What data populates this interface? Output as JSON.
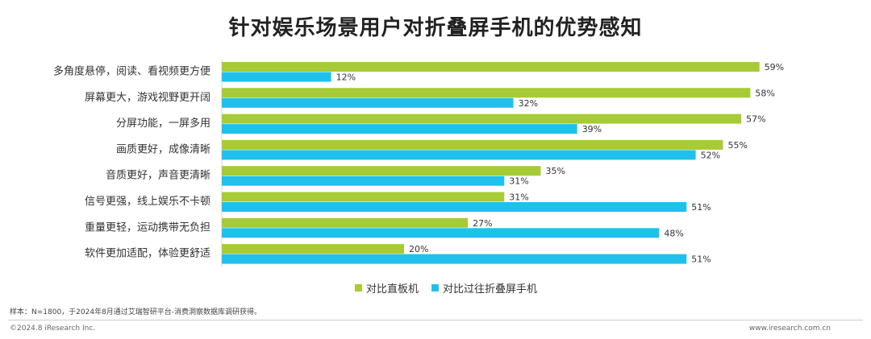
{
  "title": "针对娱乐场景用户对折叠屏手机的优势感知",
  "colors": {
    "series1": "#a6cb36",
    "series2": "#1fc1ec"
  },
  "note": "样本：N=1800，于2024年8月通过艾瑞智研平台-消费洞察数据库调研获得。",
  "footer": {
    "left": "©2024.8 iResearch Inc.",
    "right": "www.iresearch.com.cn"
  },
  "chart_data": {
    "type": "bar",
    "orientation": "horizontal",
    "title": "针对娱乐场景用户对折叠屏手机的优势感知",
    "categories": [
      "多角度悬停，阅读、看视频更方便",
      "屏幕更大，游戏视野更开阔",
      "分屏功能，一屏多用",
      "画质更好，成像清晰",
      "音质更好，声音更清晰",
      "信号更强，线上娱乐不卡顿",
      "重量更轻，运动携带无负担",
      "软件更加适配，体验更舒适"
    ],
    "series": [
      {
        "name": "对比直板机",
        "color": "#a6cb36",
        "values": [
          59,
          58,
          57,
          55,
          35,
          31,
          27,
          20
        ]
      },
      {
        "name": "对比过往折叠屏手机",
        "color": "#1fc1ec",
        "values": [
          12,
          32,
          39,
          52,
          31,
          51,
          48,
          51
        ]
      }
    ],
    "value_suffix": "%",
    "legend_position": "bottom",
    "grid": false
  }
}
